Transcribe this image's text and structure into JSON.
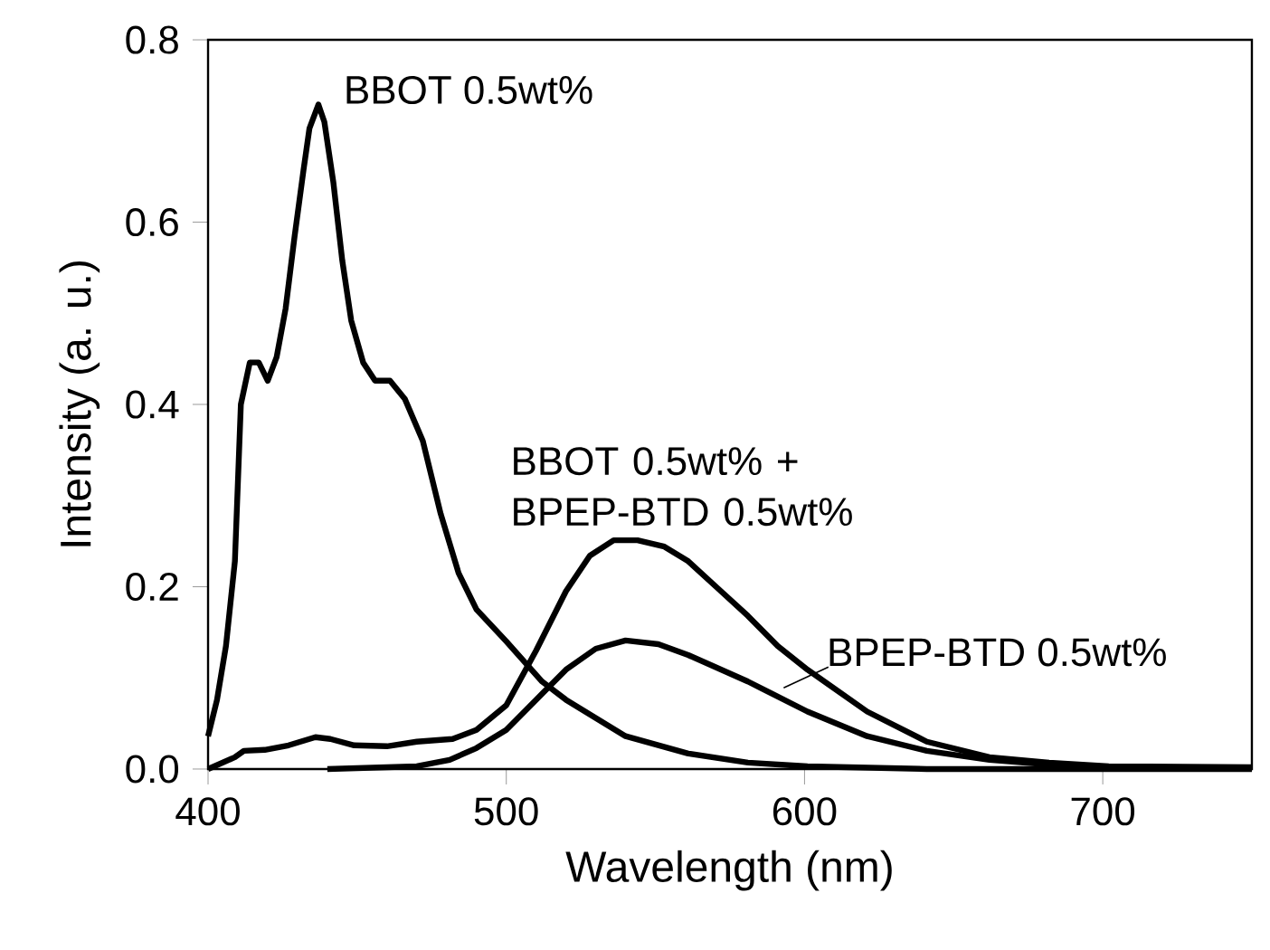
{
  "chart_data": {
    "type": "line",
    "xlabel": "Wavelength  (nm)",
    "ylabel": "Intensity  (a. u.)",
    "xlim": [
      400,
      750
    ],
    "ylim": [
      0,
      0.8
    ],
    "xticks": [
      400,
      500,
      600,
      700
    ],
    "yticks": [
      {
        "value": 0,
        "label": "0.0"
      },
      {
        "value": 0.2,
        "label": "0.2"
      },
      {
        "value": 0.4,
        "label": "0.4"
      },
      {
        "value": 0.6,
        "label": "0.6"
      },
      {
        "value": 0.8,
        "label": "0.8"
      }
    ],
    "series": [
      {
        "name": "BBOT  0.5wt%",
        "color": "#000000",
        "x": [
          400,
          403,
          406,
          409,
          411,
          414,
          417,
          420,
          423,
          426,
          429,
          432,
          434,
          437,
          439,
          442,
          445,
          448,
          452,
          456,
          461,
          466,
          472,
          478,
          484,
          490,
          500,
          512,
          520,
          540,
          561,
          581,
          601,
          641,
          700,
          750
        ],
        "values": [
          0.036,
          0.076,
          0.135,
          0.228,
          0.4,
          0.446,
          0.446,
          0.426,
          0.452,
          0.505,
          0.584,
          0.657,
          0.703,
          0.729,
          0.71,
          0.644,
          0.558,
          0.492,
          0.446,
          0.426,
          0.426,
          0.406,
          0.36,
          0.28,
          0.215,
          0.175,
          0.14,
          0.096,
          0.076,
          0.036,
          0.017,
          0.007,
          0.003,
          0.0,
          0.0,
          0.0
        ]
      },
      {
        "name": "BBOT  0.5wt%  +  BPEP-BTD  0.5wt%",
        "color": "#000000",
        "x": [
          400,
          409,
          412,
          419,
          427,
          436,
          441,
          449,
          460,
          470,
          482,
          490,
          500,
          510,
          520,
          528,
          536,
          544,
          553,
          561,
          571,
          581,
          591,
          601,
          621,
          641,
          662,
          682,
          702,
          750
        ],
        "values": [
          0.0,
          0.013,
          0.02,
          0.021,
          0.026,
          0.035,
          0.033,
          0.026,
          0.025,
          0.03,
          0.033,
          0.043,
          0.07,
          0.13,
          0.195,
          0.234,
          0.251,
          0.251,
          0.244,
          0.228,
          0.198,
          0.168,
          0.135,
          0.109,
          0.063,
          0.03,
          0.013,
          0.007,
          0.003,
          0.002
        ]
      },
      {
        "name": "BPEP-BTD  0.5wt%",
        "color": "#000000",
        "x": [
          440,
          470,
          481,
          490,
          500,
          510,
          520,
          530,
          540,
          551,
          561,
          581,
          601,
          621,
          641,
          662,
          682,
          702,
          730
        ],
        "values": [
          0.0,
          0.003,
          0.01,
          0.023,
          0.043,
          0.076,
          0.109,
          0.132,
          0.141,
          0.137,
          0.125,
          0.096,
          0.063,
          0.036,
          0.02,
          0.01,
          0.005,
          0.002,
          0.001
        ]
      }
    ]
  }
}
